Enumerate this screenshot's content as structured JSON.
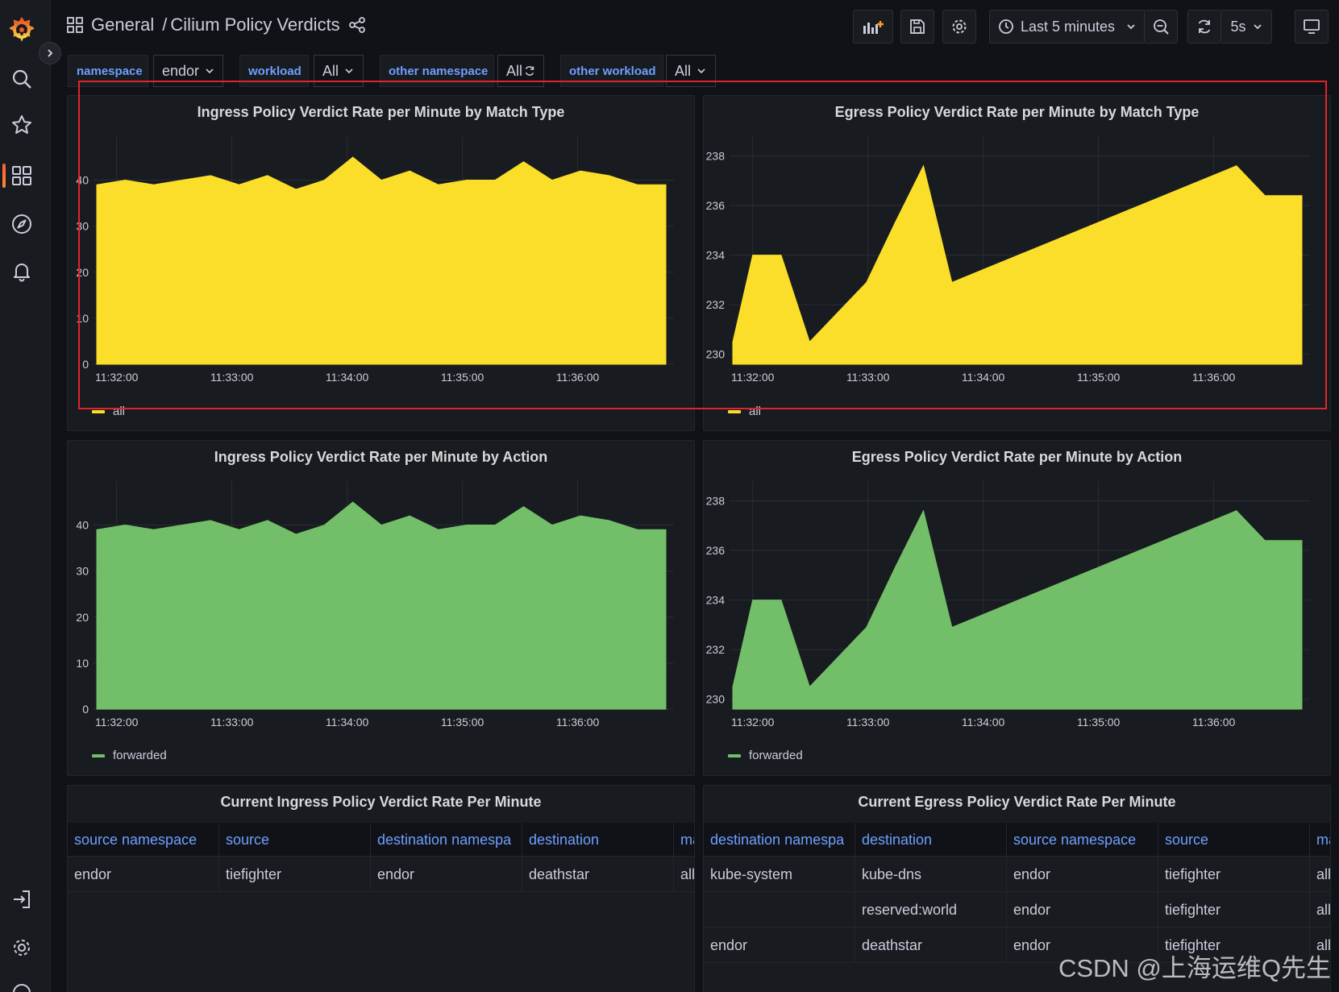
{
  "breadcrumb": {
    "folder": "General",
    "separator": "/",
    "dashboard": "Cilium Policy Verdicts"
  },
  "toolbar": {
    "time_range": "Last 5 minutes",
    "refresh_interval": "5s"
  },
  "variables": [
    {
      "label": "namespace",
      "value": "endor"
    },
    {
      "label": "workload",
      "value": "All"
    },
    {
      "label": "other namespace",
      "value": "All"
    },
    {
      "label": "other workload",
      "value": "All"
    }
  ],
  "colors": {
    "yellow": "#fade2a",
    "green": "#73bf69",
    "accent": "#6e9fff"
  },
  "chart_data": [
    {
      "type": "area",
      "title": "Ingress Policy Verdict Rate per Minute by Match Type",
      "xticks": [
        "11:32:00",
        "11:33:00",
        "11:34:00",
        "11:35:00",
        "11:36:00"
      ],
      "yticks": [
        0,
        10,
        20,
        30,
        40
      ],
      "ylim": [
        0,
        48.5
      ],
      "xlim": [
        0,
        20
      ],
      "series": [
        {
          "name": "all",
          "color": "#fade2a",
          "x": [
            0,
            1,
            2,
            3,
            4,
            5,
            6,
            7,
            8,
            9,
            10,
            11,
            12,
            13,
            14,
            15,
            16,
            17,
            18,
            19,
            20
          ],
          "values": [
            39,
            40,
            39,
            40,
            41,
            39,
            41,
            38,
            40,
            45,
            40,
            42,
            39,
            40,
            40,
            44,
            40,
            42,
            41,
            39,
            39
          ]
        }
      ]
    },
    {
      "type": "area",
      "title": "Egress Policy Verdict Rate per Minute by Match Type",
      "xticks": [
        "11:32:00",
        "11:33:00",
        "11:34:00",
        "11:35:00",
        "11:36:00"
      ],
      "yticks": [
        230,
        232,
        234,
        236,
        238
      ],
      "ylim": [
        229.6,
        238.6
      ],
      "xlim": [
        0,
        20
      ],
      "series": [
        {
          "name": "all",
          "color": "#fade2a",
          "x": [
            0,
            0.7,
            1.7,
            2.7,
            3.7,
            4.7,
            5.7,
            6.7,
            7.7,
            17.7,
            18.7,
            20
          ],
          "values": [
            230.5,
            234,
            234,
            230.5,
            231.7,
            232.9,
            235.3,
            237.6,
            232.9,
            237.6,
            236.4,
            236.4
          ]
        }
      ]
    },
    {
      "type": "area",
      "title": "Ingress Policy Verdict Rate per Minute by Action",
      "xticks": [
        "11:32:00",
        "11:33:00",
        "11:34:00",
        "11:35:00",
        "11:36:00"
      ],
      "yticks": [
        0,
        10,
        20,
        30,
        40
      ],
      "ylim": [
        0,
        48.5
      ],
      "xlim": [
        0,
        20
      ],
      "series": [
        {
          "name": "forwarded",
          "color": "#73bf69",
          "x": [
            0,
            1,
            2,
            3,
            4,
            5,
            6,
            7,
            8,
            9,
            10,
            11,
            12,
            13,
            14,
            15,
            16,
            17,
            18,
            19,
            20
          ],
          "values": [
            39,
            40,
            39,
            40,
            41,
            39,
            41,
            38,
            40,
            45,
            40,
            42,
            39,
            40,
            40,
            44,
            40,
            42,
            41,
            39,
            39
          ]
        }
      ]
    },
    {
      "type": "area",
      "title": "Egress Policy Verdict Rate per Minute by Action",
      "xticks": [
        "11:32:00",
        "11:33:00",
        "11:34:00",
        "11:35:00",
        "11:36:00"
      ],
      "yticks": [
        230,
        232,
        234,
        236,
        238
      ],
      "ylim": [
        229.6,
        238.6
      ],
      "xlim": [
        0,
        20
      ],
      "series": [
        {
          "name": "forwarded",
          "color": "#73bf69",
          "x": [
            0,
            0.7,
            1.7,
            2.7,
            3.7,
            4.7,
            5.7,
            6.7,
            7.7,
            17.7,
            18.7,
            20
          ],
          "values": [
            230.5,
            234,
            234,
            230.5,
            231.7,
            232.9,
            235.3,
            237.6,
            232.9,
            237.6,
            236.4,
            236.4
          ]
        }
      ]
    }
  ],
  "ingress_table": {
    "title": "Current Ingress Policy Verdict Rate Per Minute",
    "columns": [
      "source namespace",
      "source",
      "destination namespa",
      "destination",
      "ma"
    ],
    "rows": [
      [
        "endor",
        "tiefighter",
        "endor",
        "deathstar",
        "all"
      ]
    ]
  },
  "egress_table": {
    "title": "Current Egress Policy Verdict Rate Per Minute",
    "columns": [
      "destination namespa",
      "destination",
      "source namespace",
      "source",
      "ma"
    ],
    "rows": [
      [
        "kube-system",
        "kube-dns",
        "endor",
        "tiefighter",
        "all"
      ],
      [
        "",
        "reserved:world",
        "endor",
        "tiefighter",
        "all"
      ],
      [
        "endor",
        "deathstar",
        "endor",
        "tiefighter",
        "all"
      ]
    ]
  },
  "watermark": "CSDN @上海运维Q先生"
}
